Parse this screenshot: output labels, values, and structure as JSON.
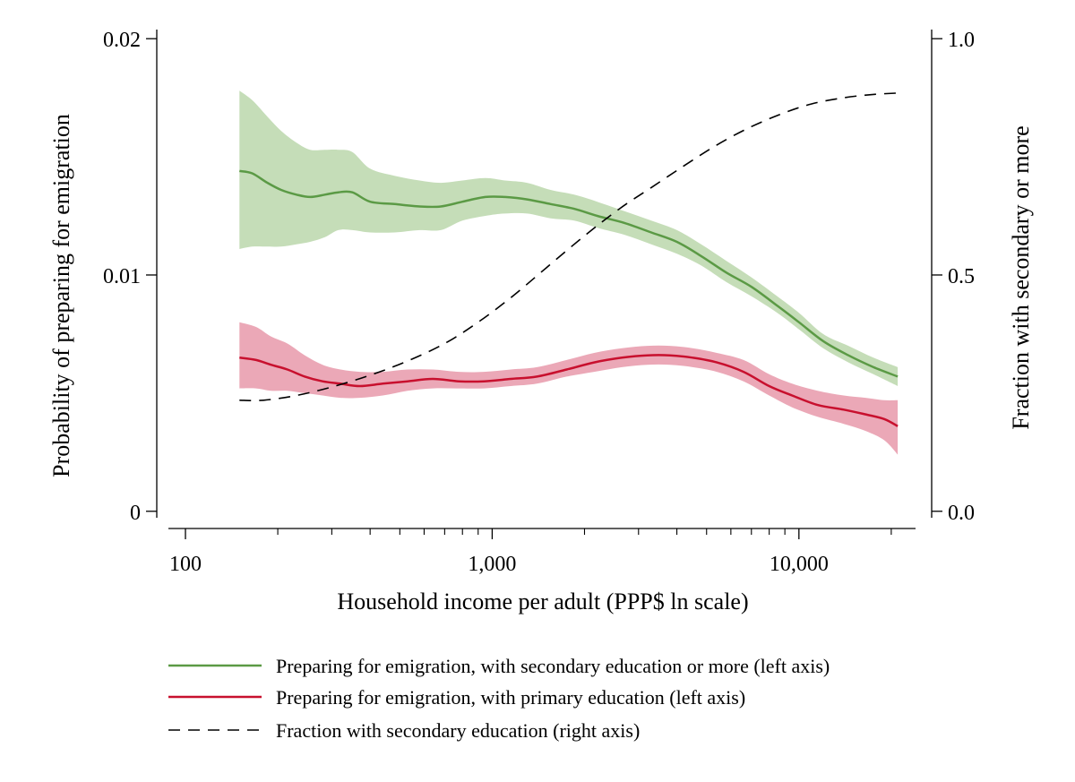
{
  "chart_data": {
    "type": "line",
    "xlabel": "Household income per adult (PPP$ ln scale)",
    "ylabel_left": "Probability of preparing for emigration",
    "ylabel_right": "Fraction with secondary or more",
    "x_scale": "log",
    "xlim": [
      88,
      24000
    ],
    "ylim_left": [
      -0.00035,
      0.0205
    ],
    "ylim_right": [
      -0.0175,
      1.025
    ],
    "x_ticks": [
      {
        "value": 100,
        "label": "100"
      },
      {
        "value": 1000,
        "label": "1,000"
      },
      {
        "value": 10000,
        "label": "10,000"
      }
    ],
    "x_minor_ticks": [
      200,
      300,
      400,
      500,
      600,
      700,
      800,
      900,
      2000,
      3000,
      4000,
      5000,
      6000,
      7000,
      8000,
      9000,
      20000
    ],
    "y_ticks_left": [
      {
        "value": 0,
        "label": "0"
      },
      {
        "value": 0.01,
        "label": "0.01"
      },
      {
        "value": 0.02,
        "label": "0.02"
      }
    ],
    "y_ticks_right": [
      {
        "value": 0,
        "label": "0.0"
      },
      {
        "value": 0.5,
        "label": "0.5"
      },
      {
        "value": 1,
        "label": "1.0"
      }
    ],
    "grid": false,
    "legend_position": "bottom",
    "series": [
      {
        "name": "Preparing for emigration, with secondary education or more (left axis)",
        "axis": "left",
        "style": "solid",
        "color": "#5b9a45",
        "band_color": "#c5ddb8",
        "points": [
          [
            150,
            0.0144,
            0.0111,
            0.0178
          ],
          [
            165,
            0.0143,
            0.0112,
            0.0174
          ],
          [
            185,
            0.0139,
            0.0112,
            0.0167
          ],
          [
            205,
            0.0136,
            0.0112,
            0.0161
          ],
          [
            230,
            0.0134,
            0.0113,
            0.0156
          ],
          [
            255,
            0.0133,
            0.0114,
            0.0153
          ],
          [
            285,
            0.0134,
            0.0116,
            0.0153
          ],
          [
            315,
            0.0135,
            0.0119,
            0.0153
          ],
          [
            350,
            0.0135,
            0.0119,
            0.0152
          ],
          [
            400,
            0.0131,
            0.0118,
            0.0145
          ],
          [
            480,
            0.013,
            0.0118,
            0.0142
          ],
          [
            580,
            0.0129,
            0.0119,
            0.014
          ],
          [
            680,
            0.0129,
            0.0119,
            0.0139
          ],
          [
            800,
            0.0131,
            0.0123,
            0.014
          ],
          [
            950,
            0.0133,
            0.0125,
            0.0141
          ],
          [
            1100,
            0.0133,
            0.0126,
            0.014
          ],
          [
            1300,
            0.0132,
            0.0126,
            0.0139
          ],
          [
            1550,
            0.013,
            0.0124,
            0.0136
          ],
          [
            1850,
            0.0128,
            0.0123,
            0.0134
          ],
          [
            2200,
            0.0125,
            0.012,
            0.0131
          ],
          [
            2700,
            0.0122,
            0.0117,
            0.0127
          ],
          [
            3300,
            0.0118,
            0.0113,
            0.0123
          ],
          [
            4000,
            0.0114,
            0.0109,
            0.0119
          ],
          [
            4800,
            0.0108,
            0.0104,
            0.0113
          ],
          [
            5800,
            0.0101,
            0.0097,
            0.0106
          ],
          [
            7000,
            0.0095,
            0.0091,
            0.0099
          ],
          [
            8500,
            0.0087,
            0.0084,
            0.0091
          ],
          [
            10000,
            0.008,
            0.0077,
            0.0084
          ],
          [
            12000,
            0.0072,
            0.0069,
            0.0075
          ],
          [
            14500,
            0.0066,
            0.0063,
            0.007
          ],
          [
            17500,
            0.0061,
            0.0058,
            0.0065
          ],
          [
            21000,
            0.0057,
            0.0053,
            0.0061
          ]
        ]
      },
      {
        "name": "Preparing for emigration, with primary education (left axis)",
        "axis": "left",
        "style": "solid",
        "color": "#c8102e",
        "band_color": "#eba8b7",
        "points": [
          [
            150,
            0.0065,
            0.0052,
            0.008
          ],
          [
            170,
            0.0064,
            0.0052,
            0.0078
          ],
          [
            190,
            0.0062,
            0.0051,
            0.0074
          ],
          [
            215,
            0.006,
            0.0051,
            0.0071
          ],
          [
            245,
            0.0057,
            0.005,
            0.0066
          ],
          [
            280,
            0.0055,
            0.0049,
            0.0062
          ],
          [
            320,
            0.0054,
            0.0048,
            0.006
          ],
          [
            370,
            0.0053,
            0.0048,
            0.0059
          ],
          [
            440,
            0.0054,
            0.0049,
            0.0059
          ],
          [
            530,
            0.0055,
            0.0051,
            0.006
          ],
          [
            640,
            0.0056,
            0.0052,
            0.006
          ],
          [
            780,
            0.0055,
            0.0052,
            0.0059
          ],
          [
            940,
            0.0055,
            0.0052,
            0.0059
          ],
          [
            1150,
            0.0056,
            0.0053,
            0.006
          ],
          [
            1400,
            0.0057,
            0.0054,
            0.0061
          ],
          [
            1750,
            0.006,
            0.0057,
            0.0064
          ],
          [
            2150,
            0.0063,
            0.0059,
            0.0067
          ],
          [
            2650,
            0.0065,
            0.0061,
            0.0069
          ],
          [
            3200,
            0.0066,
            0.0062,
            0.007
          ],
          [
            3800,
            0.0066,
            0.0062,
            0.007
          ],
          [
            4500,
            0.0065,
            0.0061,
            0.0069
          ],
          [
            5400,
            0.0063,
            0.0059,
            0.0067
          ],
          [
            6600,
            0.0059,
            0.0055,
            0.0064
          ],
          [
            8000,
            0.0053,
            0.0049,
            0.0058
          ],
          [
            9500,
            0.0049,
            0.0044,
            0.0054
          ],
          [
            11500,
            0.0045,
            0.004,
            0.0051
          ],
          [
            14000,
            0.0043,
            0.0037,
            0.0049
          ],
          [
            16500,
            0.0041,
            0.0034,
            0.0048
          ],
          [
            19000,
            0.0039,
            0.003,
            0.0047
          ],
          [
            21000,
            0.0036,
            0.0024,
            0.0047
          ]
        ]
      },
      {
        "name": "Fraction with secondary education (right axis)",
        "axis": "right",
        "style": "dashed",
        "color": "#000000",
        "points": [
          [
            150,
            0.235
          ],
          [
            180,
            0.235
          ],
          [
            230,
            0.245
          ],
          [
            300,
            0.263
          ],
          [
            400,
            0.288
          ],
          [
            530,
            0.318
          ],
          [
            700,
            0.355
          ],
          [
            900,
            0.4
          ],
          [
            1150,
            0.452
          ],
          [
            1500,
            0.515
          ],
          [
            2000,
            0.583
          ],
          [
            2600,
            0.64
          ],
          [
            3300,
            0.685
          ],
          [
            4200,
            0.73
          ],
          [
            5300,
            0.772
          ],
          [
            6800,
            0.81
          ],
          [
            8700,
            0.84
          ],
          [
            11000,
            0.862
          ],
          [
            14000,
            0.875
          ],
          [
            17500,
            0.882
          ],
          [
            21000,
            0.885
          ]
        ]
      }
    ]
  }
}
